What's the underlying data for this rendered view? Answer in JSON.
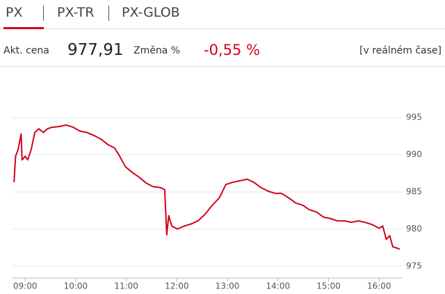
{
  "tabs": [
    "PX",
    "PX-TR",
    "PX-GLOB"
  ],
  "quote": {
    "price_label": "Akt. cena",
    "price": "977,91",
    "change_label": "Změna %",
    "change": "-0,55 %",
    "mode": "[v reálném čase]"
  },
  "chart_data": {
    "type": "line",
    "color": "#d0021b",
    "grid": true,
    "x": [
      8.78,
      8.81,
      8.86,
      8.92,
      8.94,
      9.0,
      9.05,
      9.12,
      9.19,
      9.27,
      9.36,
      9.44,
      9.53,
      9.67,
      9.81,
      9.95,
      10.08,
      10.22,
      10.36,
      10.5,
      10.63,
      10.77,
      10.87,
      10.98,
      11.12,
      11.25,
      11.39,
      11.53,
      11.67,
      11.76,
      11.8,
      11.84,
      11.9,
      12.01,
      12.15,
      12.29,
      12.42,
      12.56,
      12.7,
      12.84,
      12.97,
      13.11,
      13.25,
      13.39,
      13.52,
      13.66,
      13.8,
      13.94,
      14.07,
      14.21,
      14.35,
      14.49,
      14.62,
      14.76,
      14.9,
      15.04,
      15.17,
      15.31,
      15.45,
      15.59,
      15.72,
      15.86,
      16.0,
      16.07,
      16.14,
      16.21,
      16.27,
      16.41
    ],
    "values": [
      986.3,
      989.8,
      990.7,
      992.8,
      989.3,
      989.8,
      989.3,
      990.7,
      993.0,
      993.5,
      993.0,
      993.5,
      993.7,
      993.8,
      994.0,
      993.7,
      993.2,
      993.0,
      992.6,
      992.1,
      991.4,
      990.9,
      989.8,
      988.4,
      987.6,
      987.0,
      986.2,
      985.7,
      985.6,
      985.3,
      979.2,
      981.8,
      980.4,
      980.0,
      980.4,
      980.7,
      981.1,
      982.0,
      983.2,
      984.2,
      986.0,
      986.3,
      986.5,
      986.7,
      986.3,
      985.6,
      985.1,
      984.8,
      984.8,
      984.2,
      983.5,
      983.2,
      982.6,
      982.3,
      981.6,
      981.4,
      981.1,
      981.1,
      980.9,
      981.1,
      980.9,
      980.6,
      980.1,
      980.4,
      978.6,
      979.1,
      977.6,
      977.3
    ],
    "xlim": [
      8.75,
      16.45
    ],
    "xticks": [
      {
        "value": 9,
        "label": "09:00"
      },
      {
        "value": 10,
        "label": "10:00"
      },
      {
        "value": 11,
        "label": "11:00"
      },
      {
        "value": 12,
        "label": "12:00"
      },
      {
        "value": 13,
        "label": "13:00"
      },
      {
        "value": 14,
        "label": "14:00"
      },
      {
        "value": 15,
        "label": "15:00"
      },
      {
        "value": 16,
        "label": "16:00"
      }
    ],
    "ylim": [
      973.4,
      996.8
    ],
    "yticks": [
      975,
      980,
      985,
      990,
      995
    ]
  }
}
